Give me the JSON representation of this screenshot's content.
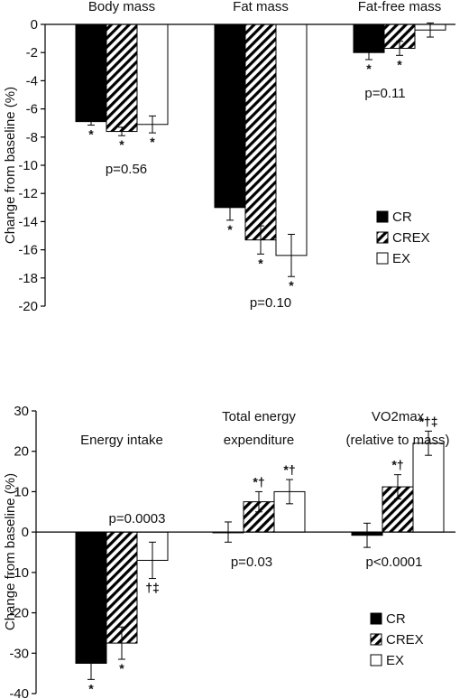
{
  "chart_data": [
    {
      "type": "bar",
      "ylabel": "Change from baseline (%)",
      "ylim": [
        -20,
        0
      ],
      "yticks": [
        0,
        -2,
        -4,
        -6,
        -8,
        -10,
        -12,
        -14,
        -16,
        -18,
        -20
      ],
      "series_names": [
        "CR",
        "CREX",
        "EX"
      ],
      "groups": [
        {
          "label": "Body mass",
          "values": [
            -6.9,
            -7.6,
            -7.1
          ],
          "errors": [
            0.25,
            0.3,
            0.6
          ],
          "sig": [
            "*",
            "*",
            "*"
          ],
          "pvalue": "p=0.56"
        },
        {
          "label": "Fat mass",
          "values": [
            -13.0,
            -15.3,
            -16.4
          ],
          "errors": [
            0.9,
            1.0,
            1.5
          ],
          "sig": [
            "*",
            "*",
            "*"
          ],
          "pvalue": "p=0.10"
        },
        {
          "label": "Fat-free mass",
          "values": [
            -2.0,
            -1.7,
            -0.4
          ],
          "errors": [
            0.5,
            0.5,
            0.5
          ],
          "sig": [
            "*",
            "*",
            ""
          ],
          "pvalue": "p=0.11"
        }
      ],
      "legend": [
        "CR",
        "CREX",
        "EX"
      ],
      "legend_position": "right"
    },
    {
      "type": "bar",
      "ylabel": "Change from baseline (%)",
      "ylim": [
        -40,
        30
      ],
      "yticks": [
        30,
        20,
        10,
        0,
        -10,
        -20,
        -30,
        -40
      ],
      "series_names": [
        "CR",
        "CREX",
        "EX"
      ],
      "groups": [
        {
          "label": "Energy intake",
          "label_lines": [
            "Energy intake"
          ],
          "values": [
            -32.5,
            -27.5,
            -7.0
          ],
          "errors": [
            4.0,
            4.0,
            4.5
          ],
          "sig": [
            "*",
            "*",
            "†‡"
          ],
          "pvalue": "p=0.0003"
        },
        {
          "label": "Total energy expenditure",
          "label_lines": [
            "Total energy",
            "expenditure"
          ],
          "values": [
            0.0,
            7.5,
            10.0
          ],
          "errors": [
            2.5,
            2.5,
            3.0
          ],
          "sig": [
            "",
            "*†",
            "*†"
          ],
          "pvalue": "p=0.03"
        },
        {
          "label": "VO2max (relative to mass)",
          "label_lines": [
            "VO2max",
            "(relative to mass)"
          ],
          "values": [
            -0.8,
            11.2,
            22.0
          ],
          "errors": [
            3.0,
            3.0,
            3.0
          ],
          "sig": [
            "",
            "*†",
            "*†‡"
          ],
          "pvalue": "p<0.0001"
        }
      ],
      "legend": [
        "CR",
        "CREX",
        "EX"
      ],
      "legend_position": "bottom-right"
    }
  ],
  "colors": {
    "CR": "#000000",
    "CREX": "hatched",
    "EX": "#ffffff",
    "axis": "#000000"
  }
}
